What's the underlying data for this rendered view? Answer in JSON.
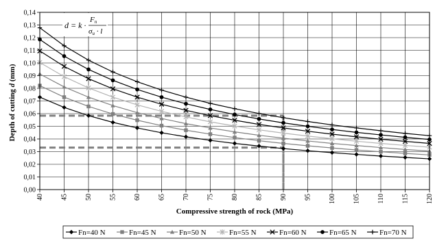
{
  "chart_data": {
    "type": "line",
    "title": "",
    "xlabel": "Compressive strength of rock (MPa)",
    "ylabel_main": "Depth of cutting ",
    "ylabel_var": "d",
    "ylabel_unit": " (mm)",
    "x": [
      40,
      45,
      50,
      55,
      60,
      65,
      70,
      75,
      80,
      85,
      90,
      95,
      100,
      105,
      110,
      115,
      120
    ],
    "x_tick_labels": [
      "40",
      "45",
      "50",
      "55",
      "60",
      "65",
      "70",
      "75",
      "80",
      "85",
      "90",
      "95",
      "100",
      "105",
      "110",
      "115",
      "120"
    ],
    "xlim": [
      40,
      120
    ],
    "ylim": [
      0,
      0.14
    ],
    "y_ticks": [
      0,
      0.01,
      0.02,
      0.03,
      0.04,
      0.05,
      0.06,
      0.07,
      0.08,
      0.09,
      0.1,
      0.11,
      0.12,
      0.13,
      0.14
    ],
    "y_tick_labels": [
      "0,00",
      "0,01",
      "0,02",
      "0,03",
      "0,04",
      "0,05",
      "0,06",
      "0,07",
      "0,08",
      "0,09",
      "0,10",
      "0,11",
      "0,12",
      "0,13",
      "0,14"
    ],
    "grid": true,
    "legend_position": "bottom",
    "formula": {
      "lhs": "d = k ·",
      "numerator": "F",
      "numerator_sub": "n",
      "denominator_a": "σ",
      "denominator_a_sub": "u",
      "denominator_b": " · l"
    },
    "series": [
      {
        "name": "Fn=40 N",
        "marker": "diamond",
        "color": "#000000",
        "values": [
          0.073,
          0.0649,
          0.0584,
          0.0531,
          0.0487,
          0.0449,
          0.0417,
          0.0389,
          0.0365,
          0.0344,
          0.0324,
          0.0307,
          0.0292,
          0.0278,
          0.0265,
          0.0254,
          0.0243
        ]
      },
      {
        "name": "Fn=45 N",
        "marker": "square",
        "color": "#808080",
        "values": [
          0.0821,
          0.073,
          0.0657,
          0.0597,
          0.0548,
          0.0505,
          0.0469,
          0.0438,
          0.0411,
          0.0386,
          0.0365,
          0.0346,
          0.0329,
          0.0313,
          0.0299,
          0.0286,
          0.0274
        ]
      },
      {
        "name": "Fn=50 N",
        "marker": "triangle",
        "color": "#808080",
        "values": [
          0.0913,
          0.0811,
          0.073,
          0.0664,
          0.0608,
          0.0562,
          0.0521,
          0.0487,
          0.0456,
          0.0429,
          0.0406,
          0.0384,
          0.0365,
          0.0348,
          0.0332,
          0.0317,
          0.0304
        ]
      },
      {
        "name": "Fn=55 N",
        "marker": "star",
        "color": "#b3b3b3",
        "values": [
          0.1004,
          0.0892,
          0.0803,
          0.073,
          0.0669,
          0.0618,
          0.0574,
          0.0535,
          0.0502,
          0.0472,
          0.0446,
          0.0423,
          0.0402,
          0.0382,
          0.0365,
          0.0349,
          0.0335
        ]
      },
      {
        "name": "Fn=60 N",
        "marker": "x",
        "color": "#000000",
        "values": [
          0.1095,
          0.0973,
          0.0876,
          0.0796,
          0.073,
          0.0674,
          0.0626,
          0.0584,
          0.0548,
          0.0515,
          0.0487,
          0.0461,
          0.0438,
          0.0417,
          0.0398,
          0.0381,
          0.0365
        ]
      },
      {
        "name": "Fn=65 N",
        "marker": "circle",
        "color": "#000000",
        "values": [
          0.1186,
          0.1054,
          0.0949,
          0.0863,
          0.0791,
          0.073,
          0.0678,
          0.0633,
          0.0593,
          0.0558,
          0.0527,
          0.05,
          0.0475,
          0.0452,
          0.0432,
          0.0413,
          0.0396
        ]
      },
      {
        "name": "Fn=70 N",
        "marker": "plus",
        "color": "#000000",
        "values": [
          0.1278,
          0.1136,
          0.1022,
          0.0929,
          0.0852,
          0.0786,
          0.073,
          0.0681,
          0.0639,
          0.0601,
          0.0568,
          0.0538,
          0.0511,
          0.0487,
          0.0465,
          0.0444,
          0.0426
        ]
      }
    ],
    "reference_lines": [
      {
        "x": 90,
        "y_from": 0.0584,
        "color": "#808080"
      },
      {
        "x": 90,
        "y_from": 0.0332,
        "color": "#808080"
      }
    ]
  }
}
